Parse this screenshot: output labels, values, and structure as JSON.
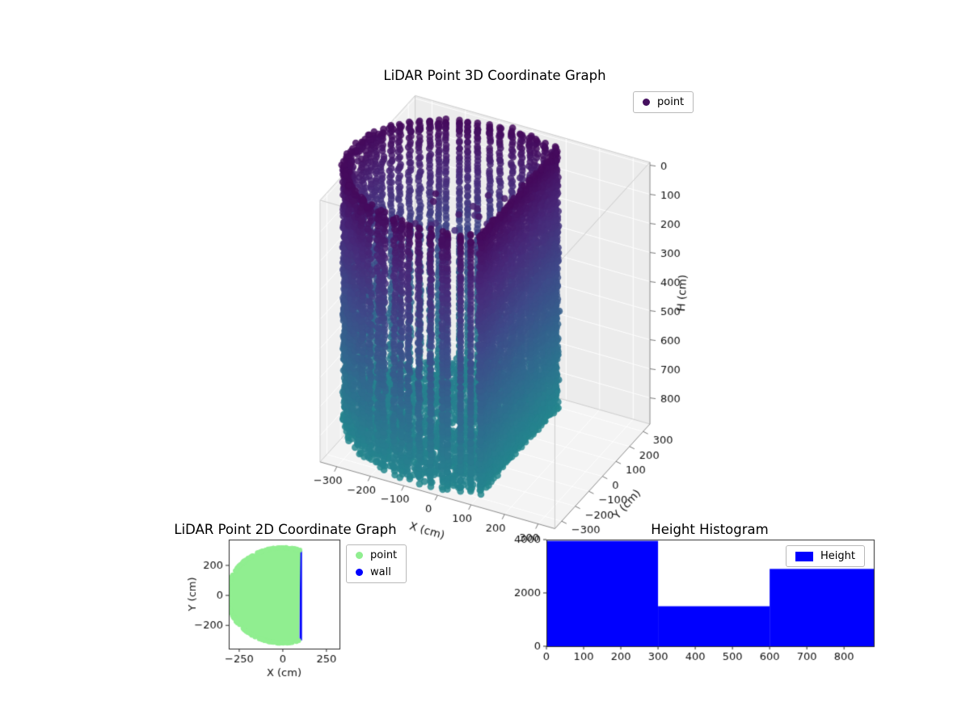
{
  "figure": {
    "background": "#ffffff"
  },
  "chart_data": [
    {
      "id": "lidar_3d",
      "type": "scatter",
      "projection": "3d",
      "title": "LiDAR Point 3D Coordinate Graph",
      "xlabel": "X (cm)",
      "ylabel": "Y (cm)",
      "zlabel": "H (cm)",
      "xticks": [
        -300,
        -200,
        -100,
        0,
        100,
        200,
        300
      ],
      "yticks": [
        -300,
        -200,
        -100,
        0,
        100,
        200,
        300
      ],
      "zticks": [
        0,
        100,
        200,
        300,
        400,
        500,
        600,
        700,
        800
      ],
      "xlim": [
        -350,
        350
      ],
      "ylim": [
        -350,
        350
      ],
      "zlim": [
        -10,
        890
      ],
      "z_axis_inverted_display": true,
      "grid": true,
      "legend": {
        "entries": [
          {
            "label": "point",
            "color": "#45105f"
          }
        ]
      },
      "point_cloud": {
        "description": "cylindrical room scan, colored by height (viridis)",
        "center_x": -60,
        "center_y": 0,
        "radius": 330,
        "flat_wall_x": 100,
        "h_min": 0,
        "h_max": 880,
        "columns": 72,
        "row_step": 11,
        "floor_points": 2200,
        "noise_points": 30,
        "marker_px": 4.3,
        "alpha": 0.85,
        "colormap": "viridis",
        "colormap_range": [
          0.03,
          0.52
        ]
      }
    },
    {
      "id": "lidar_2d",
      "type": "scatter",
      "title": "LiDAR Point 2D Coordinate Graph",
      "xlabel": "X (cm)",
      "ylabel": "Y (cm)",
      "xticks": [
        -250,
        0,
        250
      ],
      "yticks": [
        -200,
        0,
        200
      ],
      "xlim": [
        -310,
        325
      ],
      "ylim": [
        -355,
        372
      ],
      "legend": {
        "entries": [
          {
            "label": "point",
            "color": "#90ee90"
          },
          {
            "label": "wall",
            "color": "#0000ff"
          }
        ]
      },
      "region": {
        "shape": "disc_clipped_by_wall",
        "center": [
          0,
          0
        ],
        "radius": 320,
        "wall_x": 102,
        "point_color": "#90ee90",
        "wall_color": "#0000ff"
      }
    },
    {
      "id": "height_histogram",
      "type": "bar",
      "title": "Height Histogram",
      "bin_edges": [
        0,
        300,
        600,
        880
      ],
      "values": [
        3950,
        1500,
        2900
      ],
      "xticks": [
        0,
        100,
        200,
        300,
        400,
        500,
        600,
        700,
        800
      ],
      "yticks": [
        0,
        2000,
        4000
      ],
      "xlim": [
        0,
        880
      ],
      "ylim": [
        0,
        4000
      ],
      "bar_color": "#0000ff",
      "legend": {
        "entries": [
          {
            "label": "Height",
            "color": "#0000ff"
          }
        ]
      }
    }
  ]
}
